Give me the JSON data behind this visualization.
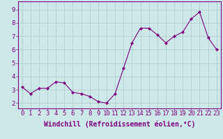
{
  "x": [
    0,
    1,
    2,
    3,
    4,
    5,
    6,
    7,
    8,
    9,
    10,
    11,
    12,
    13,
    14,
    15,
    16,
    17,
    18,
    19,
    20,
    21,
    22,
    23
  ],
  "y": [
    3.2,
    2.7,
    3.1,
    3.1,
    3.6,
    3.5,
    2.8,
    2.7,
    2.5,
    2.1,
    2.0,
    2.7,
    4.6,
    6.5,
    7.6,
    7.6,
    7.1,
    6.5,
    7.0,
    7.3,
    8.3,
    8.8,
    6.9,
    6.0
  ],
  "line_color": "#800080",
  "marker": "D",
  "marker_size": 2,
  "bg_color": "#cce8e8",
  "grid_color": "#aacccc",
  "xlabel": "Windchill (Refroidissement éolien,°C)",
  "xlabel_fontsize": 7,
  "ylabel_ticks": [
    2,
    3,
    4,
    5,
    6,
    7,
    8,
    9
  ],
  "xlim": [
    -0.5,
    23.5
  ],
  "ylim": [
    1.6,
    9.6
  ],
  "tick_fontsize": 6.5,
  "spine_color": "#800080",
  "fig_bg": "#cce8e8",
  "bottom_border_color": "#800080"
}
